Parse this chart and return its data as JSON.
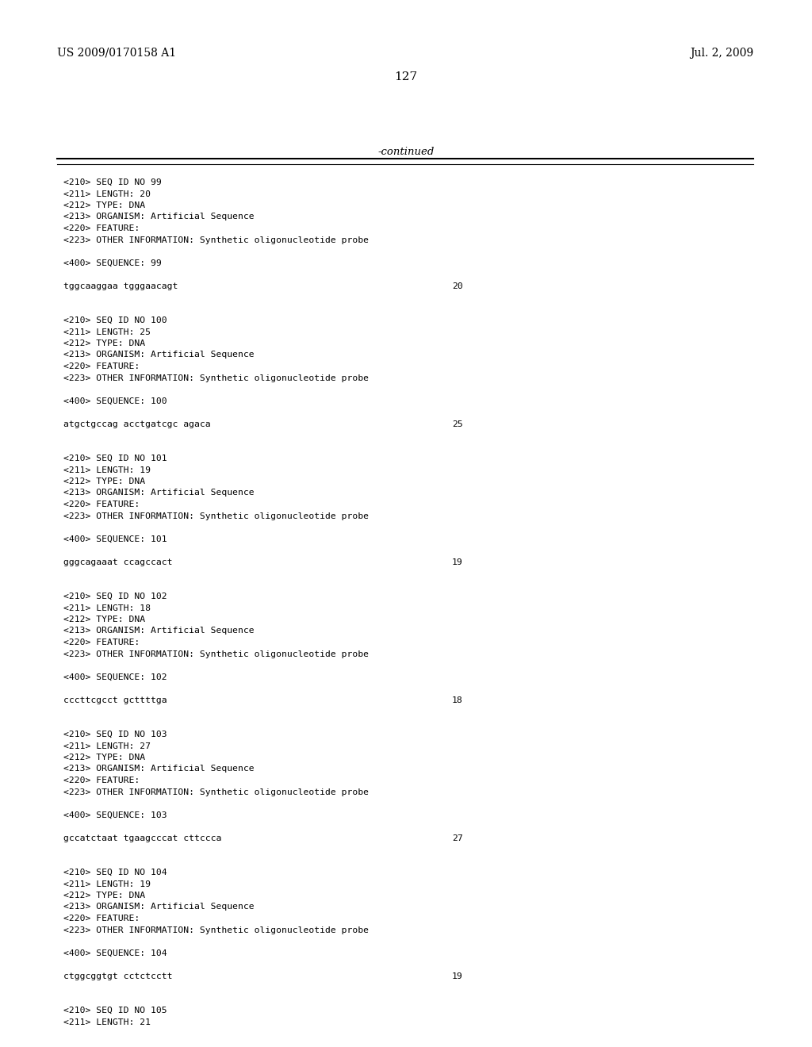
{
  "header_left": "US 2009/0170158 A1",
  "header_right": "Jul. 2, 2009",
  "page_number": "127",
  "continued_label": "-continued",
  "background_color": "#ffffff",
  "text_color": "#000000",
  "line_color": "#000000",
  "blocks": [
    {
      "meta": [
        "<210> SEQ ID NO 99",
        "<211> LENGTH: 20",
        "<212> TYPE: DNA",
        "<213> ORGANISM: Artificial Sequence",
        "<220> FEATURE:",
        "<223> OTHER INFORMATION: Synthetic oligonucleotide probe"
      ],
      "sequence_label": "<400> SEQUENCE: 99",
      "sequence": "tggcaaggaa tgggaacagt",
      "length_num": "20"
    },
    {
      "meta": [
        "<210> SEQ ID NO 100",
        "<211> LENGTH: 25",
        "<212> TYPE: DNA",
        "<213> ORGANISM: Artificial Sequence",
        "<220> FEATURE:",
        "<223> OTHER INFORMATION: Synthetic oligonucleotide probe"
      ],
      "sequence_label": "<400> SEQUENCE: 100",
      "sequence": "atgctgccag acctgatcgc agaca",
      "length_num": "25"
    },
    {
      "meta": [
        "<210> SEQ ID NO 101",
        "<211> LENGTH: 19",
        "<212> TYPE: DNA",
        "<213> ORGANISM: Artificial Sequence",
        "<220> FEATURE:",
        "<223> OTHER INFORMATION: Synthetic oligonucleotide probe"
      ],
      "sequence_label": "<400> SEQUENCE: 101",
      "sequence": "gggcagaaat ccagccact",
      "length_num": "19"
    },
    {
      "meta": [
        "<210> SEQ ID NO 102",
        "<211> LENGTH: 18",
        "<212> TYPE: DNA",
        "<213> ORGANISM: Artificial Sequence",
        "<220> FEATURE:",
        "<223> OTHER INFORMATION: Synthetic oligonucleotide probe"
      ],
      "sequence_label": "<400> SEQUENCE: 102",
      "sequence": "cccttcgcct gcttttga",
      "length_num": "18"
    },
    {
      "meta": [
        "<210> SEQ ID NO 103",
        "<211> LENGTH: 27",
        "<212> TYPE: DNA",
        "<213> ORGANISM: Artificial Sequence",
        "<220> FEATURE:",
        "<223> OTHER INFORMATION: Synthetic oligonucleotide probe"
      ],
      "sequence_label": "<400> SEQUENCE: 103",
      "sequence": "gccatctaat tgaagcccat cttccca",
      "length_num": "27"
    },
    {
      "meta": [
        "<210> SEQ ID NO 104",
        "<211> LENGTH: 19",
        "<212> TYPE: DNA",
        "<213> ORGANISM: Artificial Sequence",
        "<220> FEATURE:",
        "<223> OTHER INFORMATION: Synthetic oligonucleotide probe"
      ],
      "sequence_label": "<400> SEQUENCE: 104",
      "sequence": "ctggcggtgt cctctcctt",
      "length_num": "19"
    },
    {
      "meta": [
        "<210> SEQ ID NO 105",
        "<211> LENGTH: 21"
      ],
      "sequence_label": "",
      "sequence": "",
      "length_num": ""
    }
  ]
}
